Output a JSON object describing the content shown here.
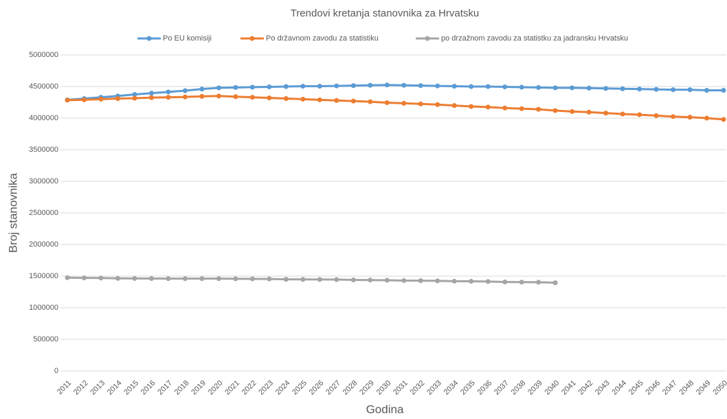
{
  "chart_data": {
    "type": "line",
    "title": "Trendovi kretanja stanovnika za Hrvatsku",
    "x_label": "Godina",
    "y_label": "Broj stanovnika",
    "categories": [
      "2011",
      "2012",
      "2013",
      "2014",
      "2015",
      "2016",
      "2017",
      "2018",
      "2019",
      "2020",
      "2021",
      "2022",
      "2023",
      "2024",
      "2025",
      "2026",
      "2027",
      "2028",
      "2029",
      "2030",
      "2031",
      "2032",
      "2033",
      "2034",
      "2035",
      "2036",
      "2037",
      "2038",
      "2039",
      "2040",
      "2041",
      "2042",
      "2043",
      "2044",
      "2045",
      "2046",
      "2047",
      "2048",
      "2049",
      "2050"
    ],
    "series": [
      {
        "name": "Po EU komisiji",
        "color": "#5b9bd5",
        "values": [
          4290000,
          4310000,
          4330000,
          4350000,
          4375000,
          4395000,
          4415000,
          4435000,
          4460000,
          4480000,
          4485000,
          4490000,
          4495000,
          4500000,
          4505000,
          4505000,
          4510000,
          4515000,
          4520000,
          4525000,
          4520000,
          4515000,
          4510000,
          4505000,
          4500000,
          4500000,
          4495000,
          4490000,
          4485000,
          4480000,
          4480000,
          4475000,
          4470000,
          4465000,
          4460000,
          4455000,
          4450000,
          4450000,
          4440000,
          4440000
        ]
      },
      {
        "name": "Po državnom zavodu za statistiku",
        "color": "#ed7d31",
        "values": [
          4285000,
          4290000,
          4300000,
          4310000,
          4315000,
          4325000,
          4330000,
          4335000,
          4345000,
          4350000,
          4340000,
          4330000,
          4320000,
          4310000,
          4300000,
          4290000,
          4280000,
          4270000,
          4260000,
          4245000,
          4235000,
          4225000,
          4215000,
          4200000,
          4185000,
          4175000,
          4160000,
          4150000,
          4140000,
          4120000,
          4105000,
          4095000,
          4080000,
          4065000,
          4055000,
          4040000,
          4025000,
          4015000,
          4000000,
          3980000
        ]
      },
      {
        "name": "po drzažnom zavodu za statistku za jadransku Hrvatsku",
        "color": "#a5a5a5",
        "values": [
          1475000,
          1472000,
          1470000,
          1465000,
          1463000,
          1462000,
          1460000,
          1460000,
          1460000,
          1460000,
          1458000,
          1457000,
          1455000,
          1450000,
          1448000,
          1447000,
          1445000,
          1440000,
          1438000,
          1435000,
          1430000,
          1428000,
          1425000,
          1420000,
          1418000,
          1415000,
          1408000,
          1405000,
          1403000,
          1395000,
          null,
          null,
          null,
          null,
          null,
          null,
          null,
          null,
          null,
          null
        ]
      }
    ],
    "ylim": [
      0,
      5000000
    ],
    "yticks": [
      0,
      500000,
      1000000,
      1500000,
      2000000,
      2500000,
      3000000,
      3500000,
      4000000,
      4500000,
      5000000
    ],
    "grid": true,
    "legend": "top"
  }
}
